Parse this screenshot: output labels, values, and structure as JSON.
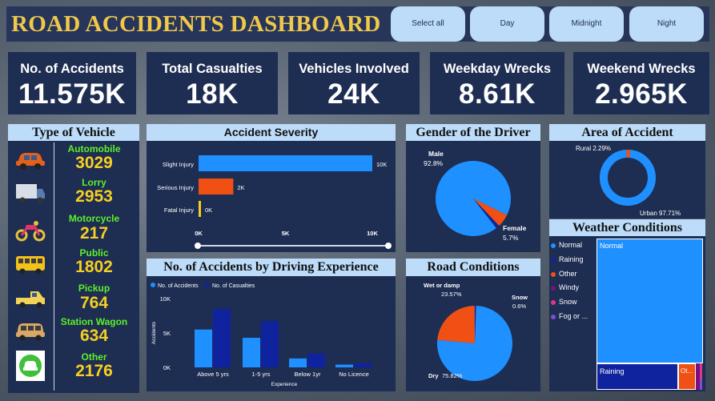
{
  "header": {
    "title": "ROAD ACCIDENTS DASHBOARD"
  },
  "slicer": {
    "buttons": [
      "Select all",
      "Day",
      "Midnight",
      "Night"
    ]
  },
  "kpis": [
    {
      "label": "No. of Accidents",
      "value": "11.575K"
    },
    {
      "label": "Total Casualties",
      "value": "18K"
    },
    {
      "label": "Vehicles Involved",
      "value": "24K"
    },
    {
      "label": "Weekday Wrecks",
      "value": "8.61K"
    },
    {
      "label": "Weekend Wrecks",
      "value": "2.965K"
    }
  ],
  "vehicle": {
    "title": "Type of Vehicle",
    "items": [
      {
        "name": "Automobile",
        "value": "3029",
        "icon": "car-icon"
      },
      {
        "name": "Lorry",
        "value": "2953",
        "icon": "truck-icon"
      },
      {
        "name": "Motorcycle",
        "value": "217",
        "icon": "motorcycle-icon"
      },
      {
        "name": "Public",
        "value": "1802",
        "icon": "bus-icon"
      },
      {
        "name": "Pickup",
        "value": "764",
        "icon": "pickup-icon"
      },
      {
        "name": "Station Wagon",
        "value": "634",
        "icon": "station-wagon-icon"
      },
      {
        "name": "Other",
        "value": "2176",
        "icon": "other-vehicle-icon"
      }
    ]
  },
  "colors": {
    "blue": "#1e90ff",
    "navy": "#10239e",
    "orange": "#f05014",
    "yellow": "#f6cf22",
    "green": "#5cf02a",
    "title": "#f0c84a"
  },
  "chart_data": [
    {
      "type": "bar",
      "orientation": "horizontal",
      "title": "Accident Severity",
      "categories": [
        "Slight Injury",
        "Serious Injury",
        "Fatal Injury"
      ],
      "values": [
        10000,
        2000,
        0
      ],
      "data_labels": [
        "10K",
        "2K",
        "0K"
      ],
      "xlim": [
        0,
        10000
      ],
      "x_ticks": [
        "0K",
        "5K",
        "10K"
      ],
      "colors": [
        "#1e90ff",
        "#f05014",
        "#f6cf22"
      ]
    },
    {
      "type": "bar",
      "title": "No. of Accidents by Driving Experience",
      "categories": [
        "Above 5 yrs",
        "1-5 yrs",
        "Below 1yr",
        "No Licence"
      ],
      "series": [
        {
          "name": "No. of Accidents",
          "values": [
            5500,
            4300,
            1300,
            400
          ],
          "color": "#1e90ff"
        },
        {
          "name": "No. of Casualties",
          "values": [
            8500,
            6700,
            2000,
            600
          ],
          "color": "#10239e"
        }
      ],
      "ylim": [
        0,
        10000
      ],
      "y_ticks": [
        "0K",
        "5K",
        "10K"
      ],
      "xlabel": "Experience",
      "ylabel": "Accidents"
    },
    {
      "type": "pie",
      "title": "Gender of the Driver",
      "slices": [
        {
          "label": "Male",
          "value": 92.8,
          "text": "92.8%",
          "color": "#1e90ff"
        },
        {
          "label": "Female",
          "value": 5.7,
          "text": "5.7%",
          "color": "#f05014"
        },
        {
          "label": "",
          "value": 1.5,
          "text": "",
          "color": "#10239e"
        }
      ]
    },
    {
      "type": "pie",
      "variant": "donut",
      "title": "Area of Accident",
      "slices": [
        {
          "label": "Urban",
          "value": 97.71,
          "text": "97.71%",
          "color": "#1e90ff"
        },
        {
          "label": "Rural",
          "value": 2.29,
          "text": "2.29%",
          "color": "#f05014"
        }
      ]
    },
    {
      "type": "pie",
      "title": "Road Conditions",
      "slices": [
        {
          "label": "Dry",
          "value": 75.82,
          "text": "75.82%",
          "color": "#1e90ff"
        },
        {
          "label": "Wet or damp",
          "value": 23.57,
          "text": "23.57%",
          "color": "#f05014"
        },
        {
          "label": "Snow",
          "value": 0.6,
          "text": "0.6%",
          "color": "#10239e"
        }
      ]
    },
    {
      "type": "treemap",
      "title": "Weather Conditions",
      "legend": [
        {
          "label": "Normal",
          "color": "#1e90ff"
        },
        {
          "label": "Raining",
          "color": "#10239e"
        },
        {
          "label": "Other",
          "color": "#f05014"
        },
        {
          "label": "Windy",
          "color": "#7a1080"
        },
        {
          "label": "Snow",
          "color": "#e0358a"
        },
        {
          "label": "Fog or ...",
          "color": "#7a4fd0"
        }
      ],
      "tiles": [
        {
          "label": "Normal",
          "color": "#1e90ff"
        },
        {
          "label": "Raining",
          "color": "#10239e"
        },
        {
          "label": "Ot...",
          "color": "#f05014"
        }
      ]
    }
  ]
}
